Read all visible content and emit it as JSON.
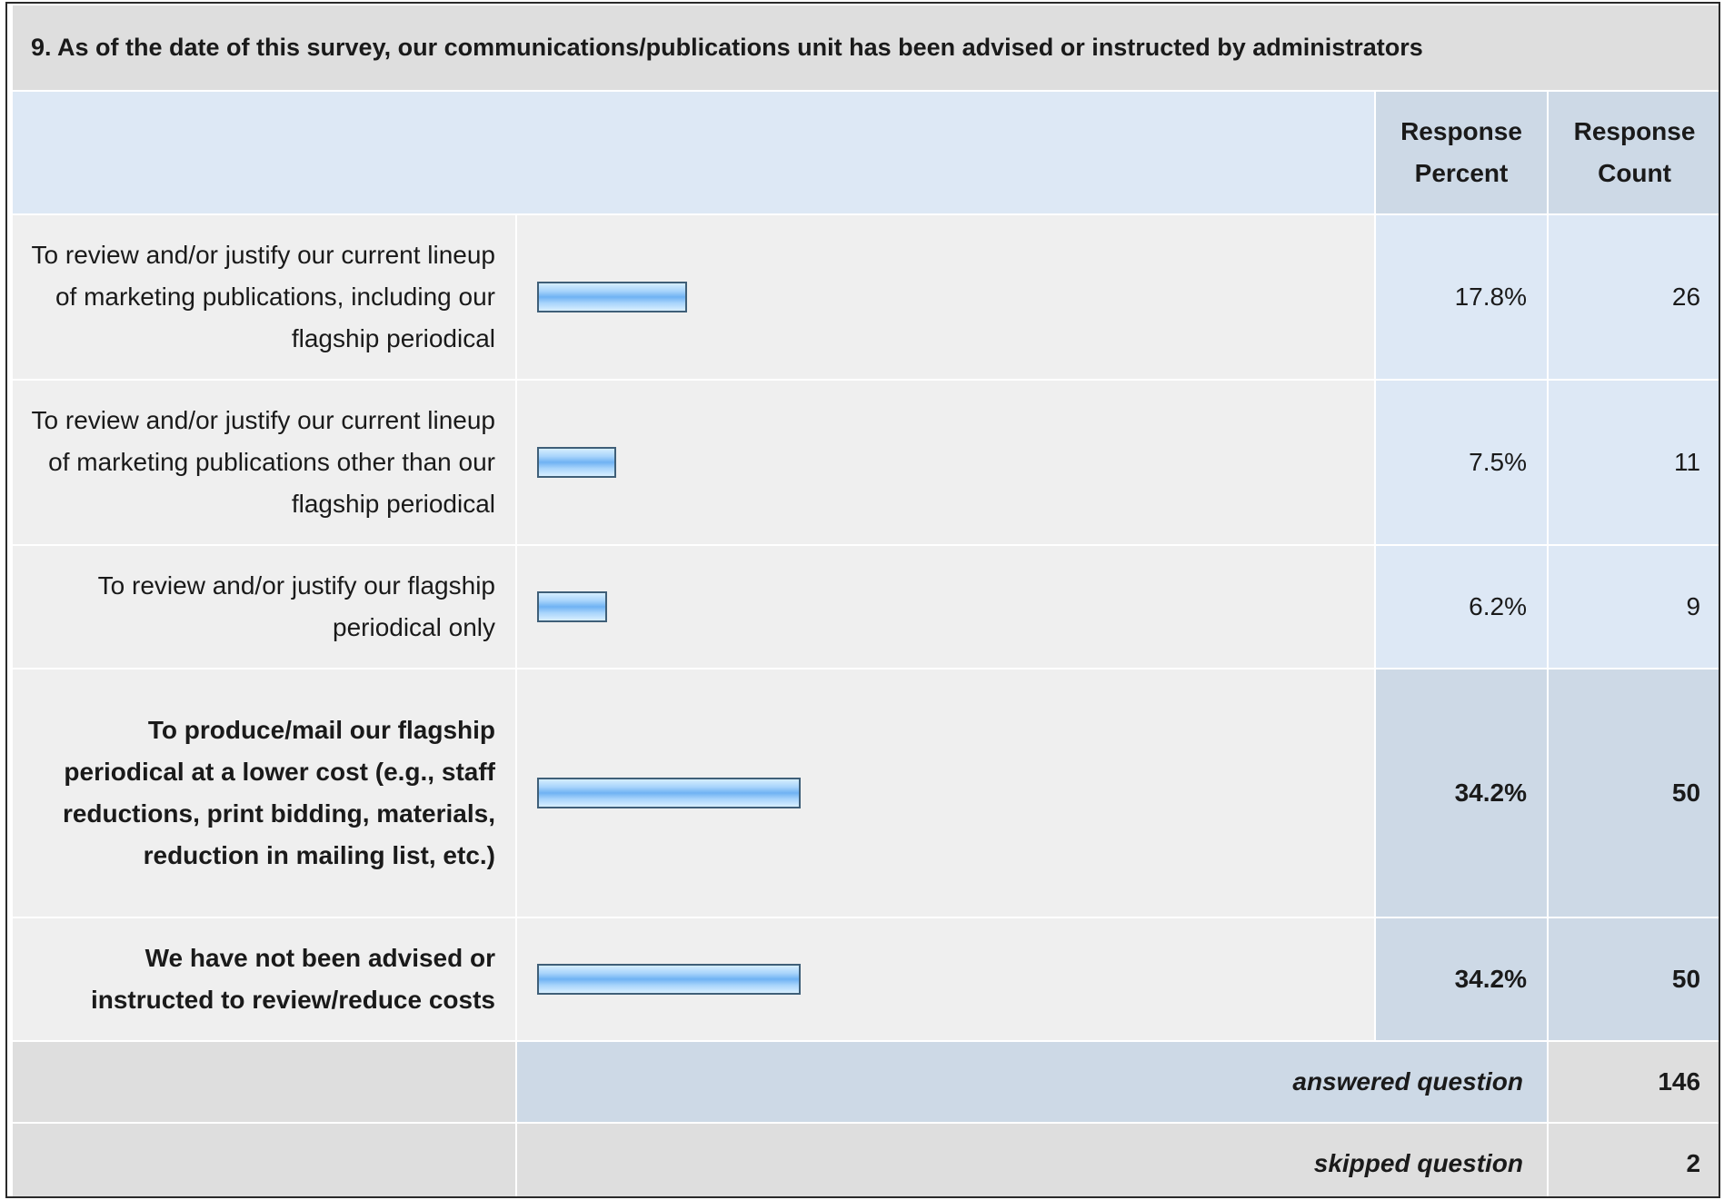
{
  "question": "9. As of the date of this survey, our communications/publications unit has been advised or instructed by administrators",
  "headers": {
    "percent": "Response Percent",
    "count": "Response Count"
  },
  "chart_data": {
    "type": "bar",
    "orientation": "horizontal",
    "categories": [
      "To review and/or justify our current lineup of marketing publications, including our flagship periodical",
      "To review and/or justify our current lineup of marketing publications other than our flagship periodical",
      "To review and/or justify our flagship periodical only",
      "To produce/mail our flagship periodical at a lower cost (e.g., staff reductions, print bidding, materials, reduction in mailing list, etc.)",
      "We have not been advised or instructed to review/reduce costs"
    ],
    "values": [
      17.8,
      7.5,
      6.2,
      34.2,
      34.2
    ],
    "percent_labels": [
      "17.8%",
      "7.5%",
      "6.2%",
      "34.2%",
      "34.2%"
    ],
    "counts": [
      "26",
      "11",
      "9",
      "50",
      "50"
    ],
    "highlighted": [
      false,
      false,
      false,
      true,
      true
    ],
    "bar_color": "#8ec6f8",
    "xlim": [
      0,
      100
    ]
  },
  "footer": {
    "answered_label": "answered question",
    "answered_value": "146",
    "skipped_label": "skipped question",
    "skipped_value": "2"
  }
}
